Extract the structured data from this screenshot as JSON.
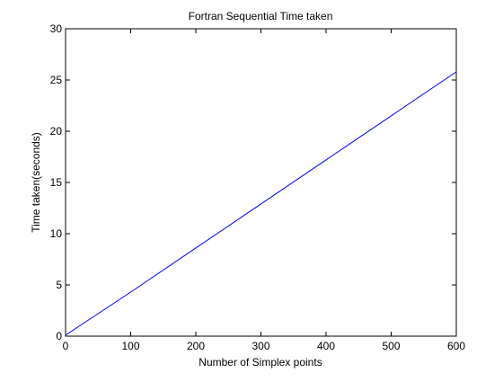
{
  "chart_data": {
    "type": "line",
    "title": "Fortran Sequential Time taken",
    "xlabel": "Number of Simplex points",
    "ylabel": "Time taken(seconds)",
    "xlim": [
      0,
      600
    ],
    "ylim": [
      0,
      30
    ],
    "xticks": [
      0,
      100,
      200,
      300,
      400,
      500,
      600
    ],
    "yticks": [
      0,
      5,
      10,
      15,
      20,
      25,
      30
    ],
    "grid": false,
    "series": [
      {
        "color": "#0000ff",
        "x": [
          0,
          100,
          200,
          300,
          400,
          500,
          600
        ],
        "y": [
          0.1,
          4.3,
          8.6,
          12.9,
          17.2,
          21.5,
          25.8
        ]
      }
    ]
  }
}
